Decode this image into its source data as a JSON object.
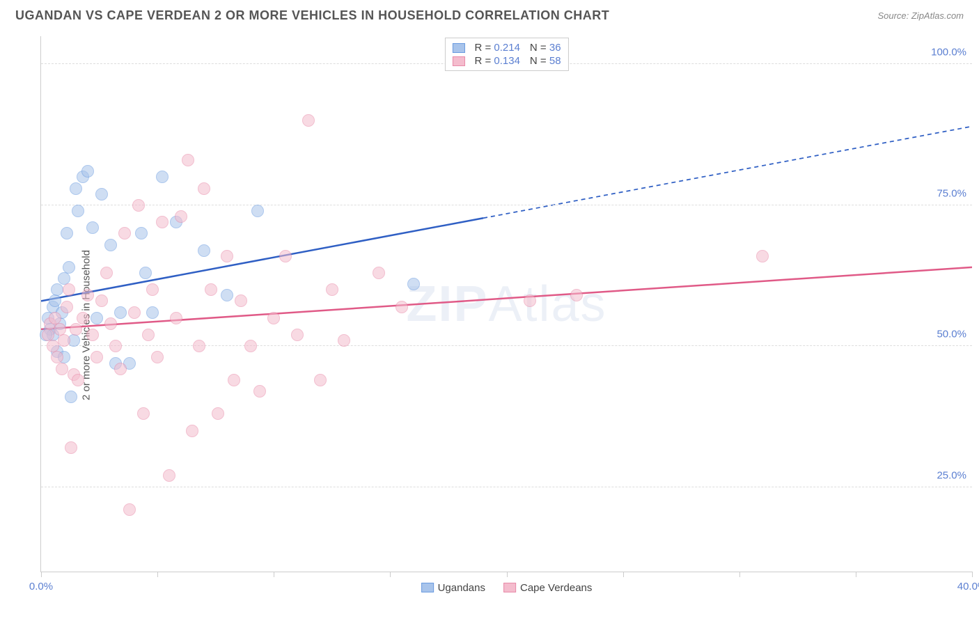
{
  "header": {
    "title": "UGANDAN VS CAPE VERDEAN 2 OR MORE VEHICLES IN HOUSEHOLD CORRELATION CHART",
    "source": "Source: ZipAtlas.com"
  },
  "chart": {
    "type": "scatter",
    "ylabel": "2 or more Vehicles in Household",
    "xlim": [
      0,
      40
    ],
    "ylim": [
      10,
      105
    ],
    "xticks": [
      0,
      5,
      10,
      15,
      20,
      25,
      30,
      35,
      40
    ],
    "xtick_labels": {
      "0": "0.0%",
      "40": "40.0%"
    },
    "yticks": [
      25,
      50,
      75,
      100
    ],
    "ytick_labels": [
      "25.0%",
      "50.0%",
      "75.0%",
      "100.0%"
    ],
    "background_color": "#ffffff",
    "grid_color": "#dddddd",
    "axis_color": "#cccccc",
    "tick_label_color": "#5b7fd1",
    "label_color": "#555555",
    "point_radius": 9,
    "point_opacity": 0.55,
    "watermark": "ZIPAtlas",
    "series": [
      {
        "name": "Ugandans",
        "color_fill": "#a8c4eb",
        "color_stroke": "#6a9be0",
        "R": "0.214",
        "N": "36",
        "trend": {
          "y_at_x0": 58,
          "y_at_x40": 89,
          "solid_until_x": 19,
          "color": "#2f5fc4",
          "width": 2.5
        },
        "points": [
          [
            0.3,
            55
          ],
          [
            0.4,
            53
          ],
          [
            0.5,
            57
          ],
          [
            0.5,
            52
          ],
          [
            0.6,
            58
          ],
          [
            0.7,
            60
          ],
          [
            0.7,
            49
          ],
          [
            0.8,
            54
          ],
          [
            0.9,
            56
          ],
          [
            1.0,
            62
          ],
          [
            1.0,
            48
          ],
          [
            1.1,
            70
          ],
          [
            1.2,
            64
          ],
          [
            1.3,
            41
          ],
          [
            1.4,
            51
          ],
          [
            1.5,
            78
          ],
          [
            1.6,
            74
          ],
          [
            1.8,
            80
          ],
          [
            2.0,
            81
          ],
          [
            2.2,
            71
          ],
          [
            2.4,
            55
          ],
          [
            2.6,
            77
          ],
          [
            3.0,
            68
          ],
          [
            3.2,
            47
          ],
          [
            3.4,
            56
          ],
          [
            3.8,
            47
          ],
          [
            4.3,
            70
          ],
          [
            4.5,
            63
          ],
          [
            4.8,
            56
          ],
          [
            5.2,
            80
          ],
          [
            5.8,
            72
          ],
          [
            7.0,
            67
          ],
          [
            8.0,
            59
          ],
          [
            9.3,
            74
          ],
          [
            16.0,
            61
          ],
          [
            0.2,
            52
          ]
        ]
      },
      {
        "name": "Cape Verdeans",
        "color_fill": "#f4bccd",
        "color_stroke": "#e88aa8",
        "R": "0.134",
        "N": "58",
        "trend": {
          "y_at_x0": 53,
          "y_at_x40": 64,
          "solid_until_x": 40,
          "color": "#e05a87",
          "width": 2.5
        },
        "points": [
          [
            0.3,
            52
          ],
          [
            0.4,
            54
          ],
          [
            0.5,
            50
          ],
          [
            0.6,
            55
          ],
          [
            0.7,
            48
          ],
          [
            0.8,
            53
          ],
          [
            0.9,
            46
          ],
          [
            1.0,
            51
          ],
          [
            1.1,
            57
          ],
          [
            1.2,
            60
          ],
          [
            1.3,
            32
          ],
          [
            1.4,
            45
          ],
          [
            1.5,
            53
          ],
          [
            1.6,
            44
          ],
          [
            1.8,
            55
          ],
          [
            2.0,
            59
          ],
          [
            2.2,
            52
          ],
          [
            2.4,
            48
          ],
          [
            2.6,
            58
          ],
          [
            2.8,
            63
          ],
          [
            3.0,
            54
          ],
          [
            3.2,
            50
          ],
          [
            3.4,
            46
          ],
          [
            3.6,
            70
          ],
          [
            3.8,
            21
          ],
          [
            4.0,
            56
          ],
          [
            4.2,
            75
          ],
          [
            4.4,
            38
          ],
          [
            4.6,
            52
          ],
          [
            4.8,
            60
          ],
          [
            5.0,
            48
          ],
          [
            5.2,
            72
          ],
          [
            5.5,
            27
          ],
          [
            5.8,
            55
          ],
          [
            6.0,
            73
          ],
          [
            6.3,
            83
          ],
          [
            6.5,
            35
          ],
          [
            6.8,
            50
          ],
          [
            7.0,
            78
          ],
          [
            7.3,
            60
          ],
          [
            7.6,
            38
          ],
          [
            8.0,
            66
          ],
          [
            8.3,
            44
          ],
          [
            8.6,
            58
          ],
          [
            9.0,
            50
          ],
          [
            9.4,
            42
          ],
          [
            10.0,
            55
          ],
          [
            10.5,
            66
          ],
          [
            11.0,
            52
          ],
          [
            11.5,
            90
          ],
          [
            12.0,
            44
          ],
          [
            12.5,
            60
          ],
          [
            13.0,
            51
          ],
          [
            14.5,
            63
          ],
          [
            15.5,
            57
          ],
          [
            21.0,
            58
          ],
          [
            23.0,
            59
          ],
          [
            31.0,
            66
          ]
        ]
      }
    ],
    "legend_bottom": [
      "Ugandans",
      "Cape Verdeans"
    ]
  }
}
